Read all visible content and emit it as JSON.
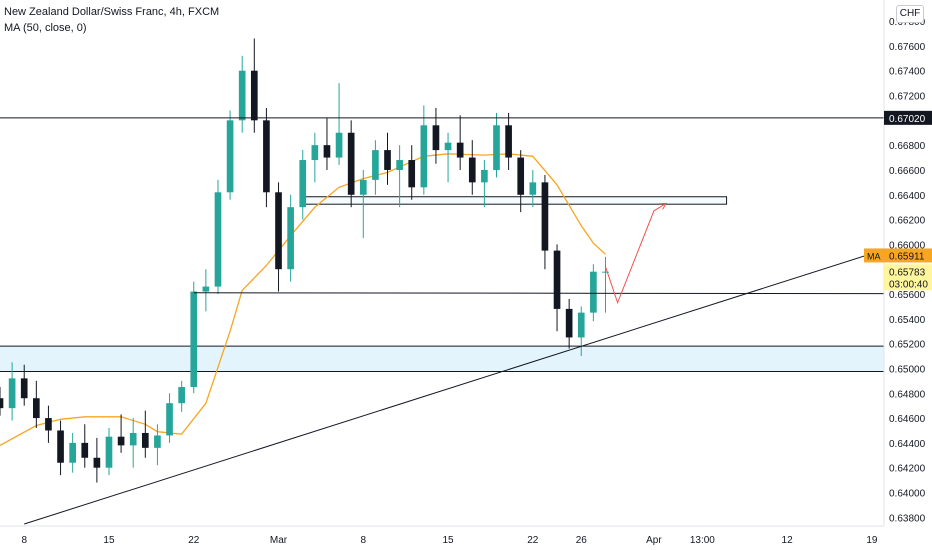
{
  "header": {
    "title": "New Zealand Dollar/Swiss Franc, 4h, FXCM",
    "indicator": "MA (50, close, 0)"
  },
  "currency_button": "CHF",
  "colors": {
    "up": "#26a69a",
    "down": "#131722",
    "ma": "#f7a623",
    "annotation": "#ef5350",
    "zone_fill": "#e3f4fc",
    "zone_stroke": "#131722"
  },
  "chart_data": {
    "type": "candlestick",
    "y_ticks": [
      "0.67800",
      "0.67600",
      "0.67400",
      "0.67200",
      "0.67000",
      "0.66800",
      "0.66600",
      "0.66400",
      "0.66200",
      "0.66000",
      "0.65800",
      "0.65600",
      "0.65400",
      "0.65200",
      "0.65000",
      "0.64800",
      "0.64600",
      "0.64400",
      "0.64200",
      "0.64000",
      "0.63800"
    ],
    "x_ticks": [
      {
        "label": "8",
        "date": "2021-02-08"
      },
      {
        "label": "15",
        "date": "2021-02-15"
      },
      {
        "label": "22",
        "date": "2021-02-22"
      },
      {
        "label": "Mar",
        "date": "2021-03-01"
      },
      {
        "label": "8",
        "date": "2021-03-08"
      },
      {
        "label": "15",
        "date": "2021-03-15"
      },
      {
        "label": "22",
        "date": "2021-03-22"
      },
      {
        "label": "26",
        "date": "2021-03-26"
      },
      {
        "label": "Apr",
        "date": "2021-04-01"
      },
      {
        "label": "13:00",
        "date": "2021-04-05"
      },
      {
        "label": "12",
        "date": "2021-04-12"
      },
      {
        "label": "19",
        "date": "2021-04-19"
      }
    ],
    "ylim": [
      0.6373,
      0.6797
    ],
    "xlim": [
      "2021-02-06",
      "2021-04-20"
    ],
    "price_labels": [
      {
        "name": "resistance",
        "value": "0.67020"
      },
      {
        "name": "MA",
        "prefix": "MA",
        "value": "0.65911"
      },
      {
        "name": "last",
        "value": "0.65783",
        "countdown": "03:00:40"
      }
    ],
    "ma_points": [
      [
        "2021-02-06",
        0.6438
      ],
      [
        "2021-02-09",
        0.6454
      ],
      [
        "2021-02-11",
        0.6459
      ],
      [
        "2021-02-13",
        0.6461
      ],
      [
        "2021-02-16",
        0.6461
      ],
      [
        "2021-02-18",
        0.6455
      ],
      [
        "2021-02-19",
        0.6449
      ],
      [
        "2021-02-21",
        0.6447
      ],
      [
        "2021-02-23",
        0.6472
      ],
      [
        "2021-02-25",
        0.653
      ],
      [
        "2021-02-26",
        0.6563
      ],
      [
        "2021-02-28",
        0.6583
      ],
      [
        "2021-03-02",
        0.6607
      ],
      [
        "2021-03-04",
        0.663
      ],
      [
        "2021-03-06",
        0.6646
      ],
      [
        "2021-03-08",
        0.6653
      ],
      [
        "2021-03-10",
        0.6658
      ],
      [
        "2021-03-13",
        0.6671
      ],
      [
        "2021-03-15",
        0.6673
      ],
      [
        "2021-03-18",
        0.6672
      ],
      [
        "2021-03-20",
        0.6673
      ],
      [
        "2021-03-22",
        0.6671
      ],
      [
        "2021-03-24",
        0.6648
      ],
      [
        "2021-03-26",
        0.6615
      ],
      [
        "2021-03-27",
        0.6601
      ],
      [
        "2021-03-28",
        0.6592
      ]
    ],
    "lines": [
      {
        "name": "resistance",
        "from": [
          "2021-02-06",
          0.6702
        ],
        "to": [
          "2021-04-20",
          0.6702
        ]
      },
      {
        "name": "support",
        "from": [
          "2021-02-22",
          0.6561
        ],
        "to": [
          "2021-04-20",
          0.65603
        ]
      },
      {
        "name": "trendline",
        "from": [
          "2021-02-08",
          0.63746
        ],
        "to": [
          "2021-04-20",
          0.65957
        ]
      }
    ],
    "zones": [
      {
        "name": "demand-zone",
        "from": "2021-02-06",
        "to": "2021-04-20",
        "top": 0.6518,
        "bottom": 0.64975,
        "filled": true
      },
      {
        "name": "mid-zone",
        "from": "2021-03-03",
        "to": "2021-04-07",
        "top": 0.66384,
        "bottom": 0.66324,
        "filled": false
      }
    ],
    "projection": [
      [
        "2021-03-28",
        0.6582
      ],
      [
        "2021-03-29",
        0.6553
      ],
      [
        "2021-04-01",
        0.6627
      ],
      [
        "2021-04-02",
        0.6633
      ]
    ],
    "candles": [
      {
        "t": "2021-02-06",
        "o": 0.6476,
        "h": 0.6485,
        "l": 0.6462,
        "c": 0.6468
      },
      {
        "t": "2021-02-07",
        "o": 0.6468,
        "h": 0.6505,
        "l": 0.6458,
        "c": 0.6492
      },
      {
        "t": "2021-02-08",
        "o": 0.6492,
        "h": 0.6503,
        "l": 0.647,
        "c": 0.6476
      },
      {
        "t": "2021-02-09",
        "o": 0.6476,
        "h": 0.649,
        "l": 0.6452,
        "c": 0.646
      },
      {
        "t": "2021-02-10",
        "o": 0.646,
        "h": 0.647,
        "l": 0.644,
        "c": 0.645
      },
      {
        "t": "2021-02-11",
        "o": 0.645,
        "h": 0.6458,
        "l": 0.6414,
        "c": 0.6424
      },
      {
        "t": "2021-02-12",
        "o": 0.6424,
        "h": 0.6448,
        "l": 0.6416,
        "c": 0.644
      },
      {
        "t": "2021-02-13",
        "o": 0.644,
        "h": 0.6455,
        "l": 0.642,
        "c": 0.6428
      },
      {
        "t": "2021-02-14",
        "o": 0.6428,
        "h": 0.6444,
        "l": 0.6408,
        "c": 0.642
      },
      {
        "t": "2021-02-15",
        "o": 0.642,
        "h": 0.6452,
        "l": 0.6414,
        "c": 0.6445
      },
      {
        "t": "2021-02-16",
        "o": 0.6445,
        "h": 0.6463,
        "l": 0.6432,
        "c": 0.6438
      },
      {
        "t": "2021-02-17",
        "o": 0.6438,
        "h": 0.646,
        "l": 0.642,
        "c": 0.6448
      },
      {
        "t": "2021-02-18",
        "o": 0.6448,
        "h": 0.6466,
        "l": 0.6428,
        "c": 0.6436
      },
      {
        "t": "2021-02-19",
        "o": 0.6436,
        "h": 0.6455,
        "l": 0.6422,
        "c": 0.6446
      },
      {
        "t": "2021-02-20",
        "o": 0.6446,
        "h": 0.648,
        "l": 0.644,
        "c": 0.6472
      },
      {
        "t": "2021-02-21",
        "o": 0.6472,
        "h": 0.649,
        "l": 0.6465,
        "c": 0.6485
      },
      {
        "t": "2021-02-22",
        "o": 0.6485,
        "h": 0.657,
        "l": 0.648,
        "c": 0.6562
      },
      {
        "t": "2021-02-23",
        "o": 0.6562,
        "h": 0.658,
        "l": 0.6546,
        "c": 0.6566
      },
      {
        "t": "2021-02-24",
        "o": 0.6566,
        "h": 0.6652,
        "l": 0.656,
        "c": 0.6642
      },
      {
        "t": "2021-02-25",
        "o": 0.6642,
        "h": 0.6708,
        "l": 0.6636,
        "c": 0.67
      },
      {
        "t": "2021-02-26",
        "o": 0.67,
        "h": 0.6752,
        "l": 0.669,
        "c": 0.674
      },
      {
        "t": "2021-02-27",
        "o": 0.674,
        "h": 0.6766,
        "l": 0.669,
        "c": 0.67
      },
      {
        "t": "2021-02-28",
        "o": 0.67,
        "h": 0.671,
        "l": 0.663,
        "c": 0.6642
      },
      {
        "t": "2021-03-01",
        "o": 0.6642,
        "h": 0.665,
        "l": 0.6562,
        "c": 0.658
      },
      {
        "t": "2021-03-02",
        "o": 0.658,
        "h": 0.664,
        "l": 0.657,
        "c": 0.663
      },
      {
        "t": "2021-03-03",
        "o": 0.663,
        "h": 0.6676,
        "l": 0.662,
        "c": 0.6668
      },
      {
        "t": "2021-03-04",
        "o": 0.6668,
        "h": 0.669,
        "l": 0.665,
        "c": 0.668
      },
      {
        "t": "2021-03-05",
        "o": 0.668,
        "h": 0.6702,
        "l": 0.666,
        "c": 0.667
      },
      {
        "t": "2021-03-06",
        "o": 0.667,
        "h": 0.673,
        "l": 0.6664,
        "c": 0.669
      },
      {
        "t": "2021-03-07",
        "o": 0.669,
        "h": 0.67,
        "l": 0.663,
        "c": 0.664
      },
      {
        "t": "2021-03-08",
        "o": 0.664,
        "h": 0.666,
        "l": 0.6605,
        "c": 0.6652
      },
      {
        "t": "2021-03-09",
        "o": 0.6652,
        "h": 0.6684,
        "l": 0.664,
        "c": 0.6676
      },
      {
        "t": "2021-03-10",
        "o": 0.6676,
        "h": 0.669,
        "l": 0.6648,
        "c": 0.666
      },
      {
        "t": "2021-03-11",
        "o": 0.666,
        "h": 0.668,
        "l": 0.663,
        "c": 0.6668
      },
      {
        "t": "2021-03-12",
        "o": 0.6668,
        "h": 0.668,
        "l": 0.6636,
        "c": 0.6646
      },
      {
        "t": "2021-03-13",
        "o": 0.6646,
        "h": 0.6712,
        "l": 0.664,
        "c": 0.6696
      },
      {
        "t": "2021-03-14",
        "o": 0.6696,
        "h": 0.671,
        "l": 0.6665,
        "c": 0.6676
      },
      {
        "t": "2021-03-15",
        "o": 0.6676,
        "h": 0.669,
        "l": 0.665,
        "c": 0.6682
      },
      {
        "t": "2021-03-16",
        "o": 0.6682,
        "h": 0.6704,
        "l": 0.666,
        "c": 0.667
      },
      {
        "t": "2021-03-17",
        "o": 0.667,
        "h": 0.6684,
        "l": 0.664,
        "c": 0.665
      },
      {
        "t": "2021-03-18",
        "o": 0.665,
        "h": 0.6668,
        "l": 0.663,
        "c": 0.666
      },
      {
        "t": "2021-03-19",
        "o": 0.666,
        "h": 0.6706,
        "l": 0.6654,
        "c": 0.6696
      },
      {
        "t": "2021-03-20",
        "o": 0.6696,
        "h": 0.6706,
        "l": 0.666,
        "c": 0.667
      },
      {
        "t": "2021-03-21",
        "o": 0.667,
        "h": 0.6676,
        "l": 0.6626,
        "c": 0.664
      },
      {
        "t": "2021-03-22",
        "o": 0.664,
        "h": 0.666,
        "l": 0.663,
        "c": 0.665
      },
      {
        "t": "2021-03-23",
        "o": 0.665,
        "h": 0.6656,
        "l": 0.658,
        "c": 0.6595
      },
      {
        "t": "2021-03-24",
        "o": 0.6595,
        "h": 0.66,
        "l": 0.653,
        "c": 0.6548
      },
      {
        "t": "2021-03-25",
        "o": 0.6548,
        "h": 0.6556,
        "l": 0.6516,
        "c": 0.6525
      },
      {
        "t": "2021-03-26",
        "o": 0.6525,
        "h": 0.655,
        "l": 0.651,
        "c": 0.6545
      },
      {
        "t": "2021-03-27",
        "o": 0.6545,
        "h": 0.6584,
        "l": 0.6538,
        "c": 0.6578
      },
      {
        "t": "2021-03-28",
        "o": 0.6578,
        "h": 0.659,
        "l": 0.6545,
        "c": 0.6578
      }
    ]
  }
}
